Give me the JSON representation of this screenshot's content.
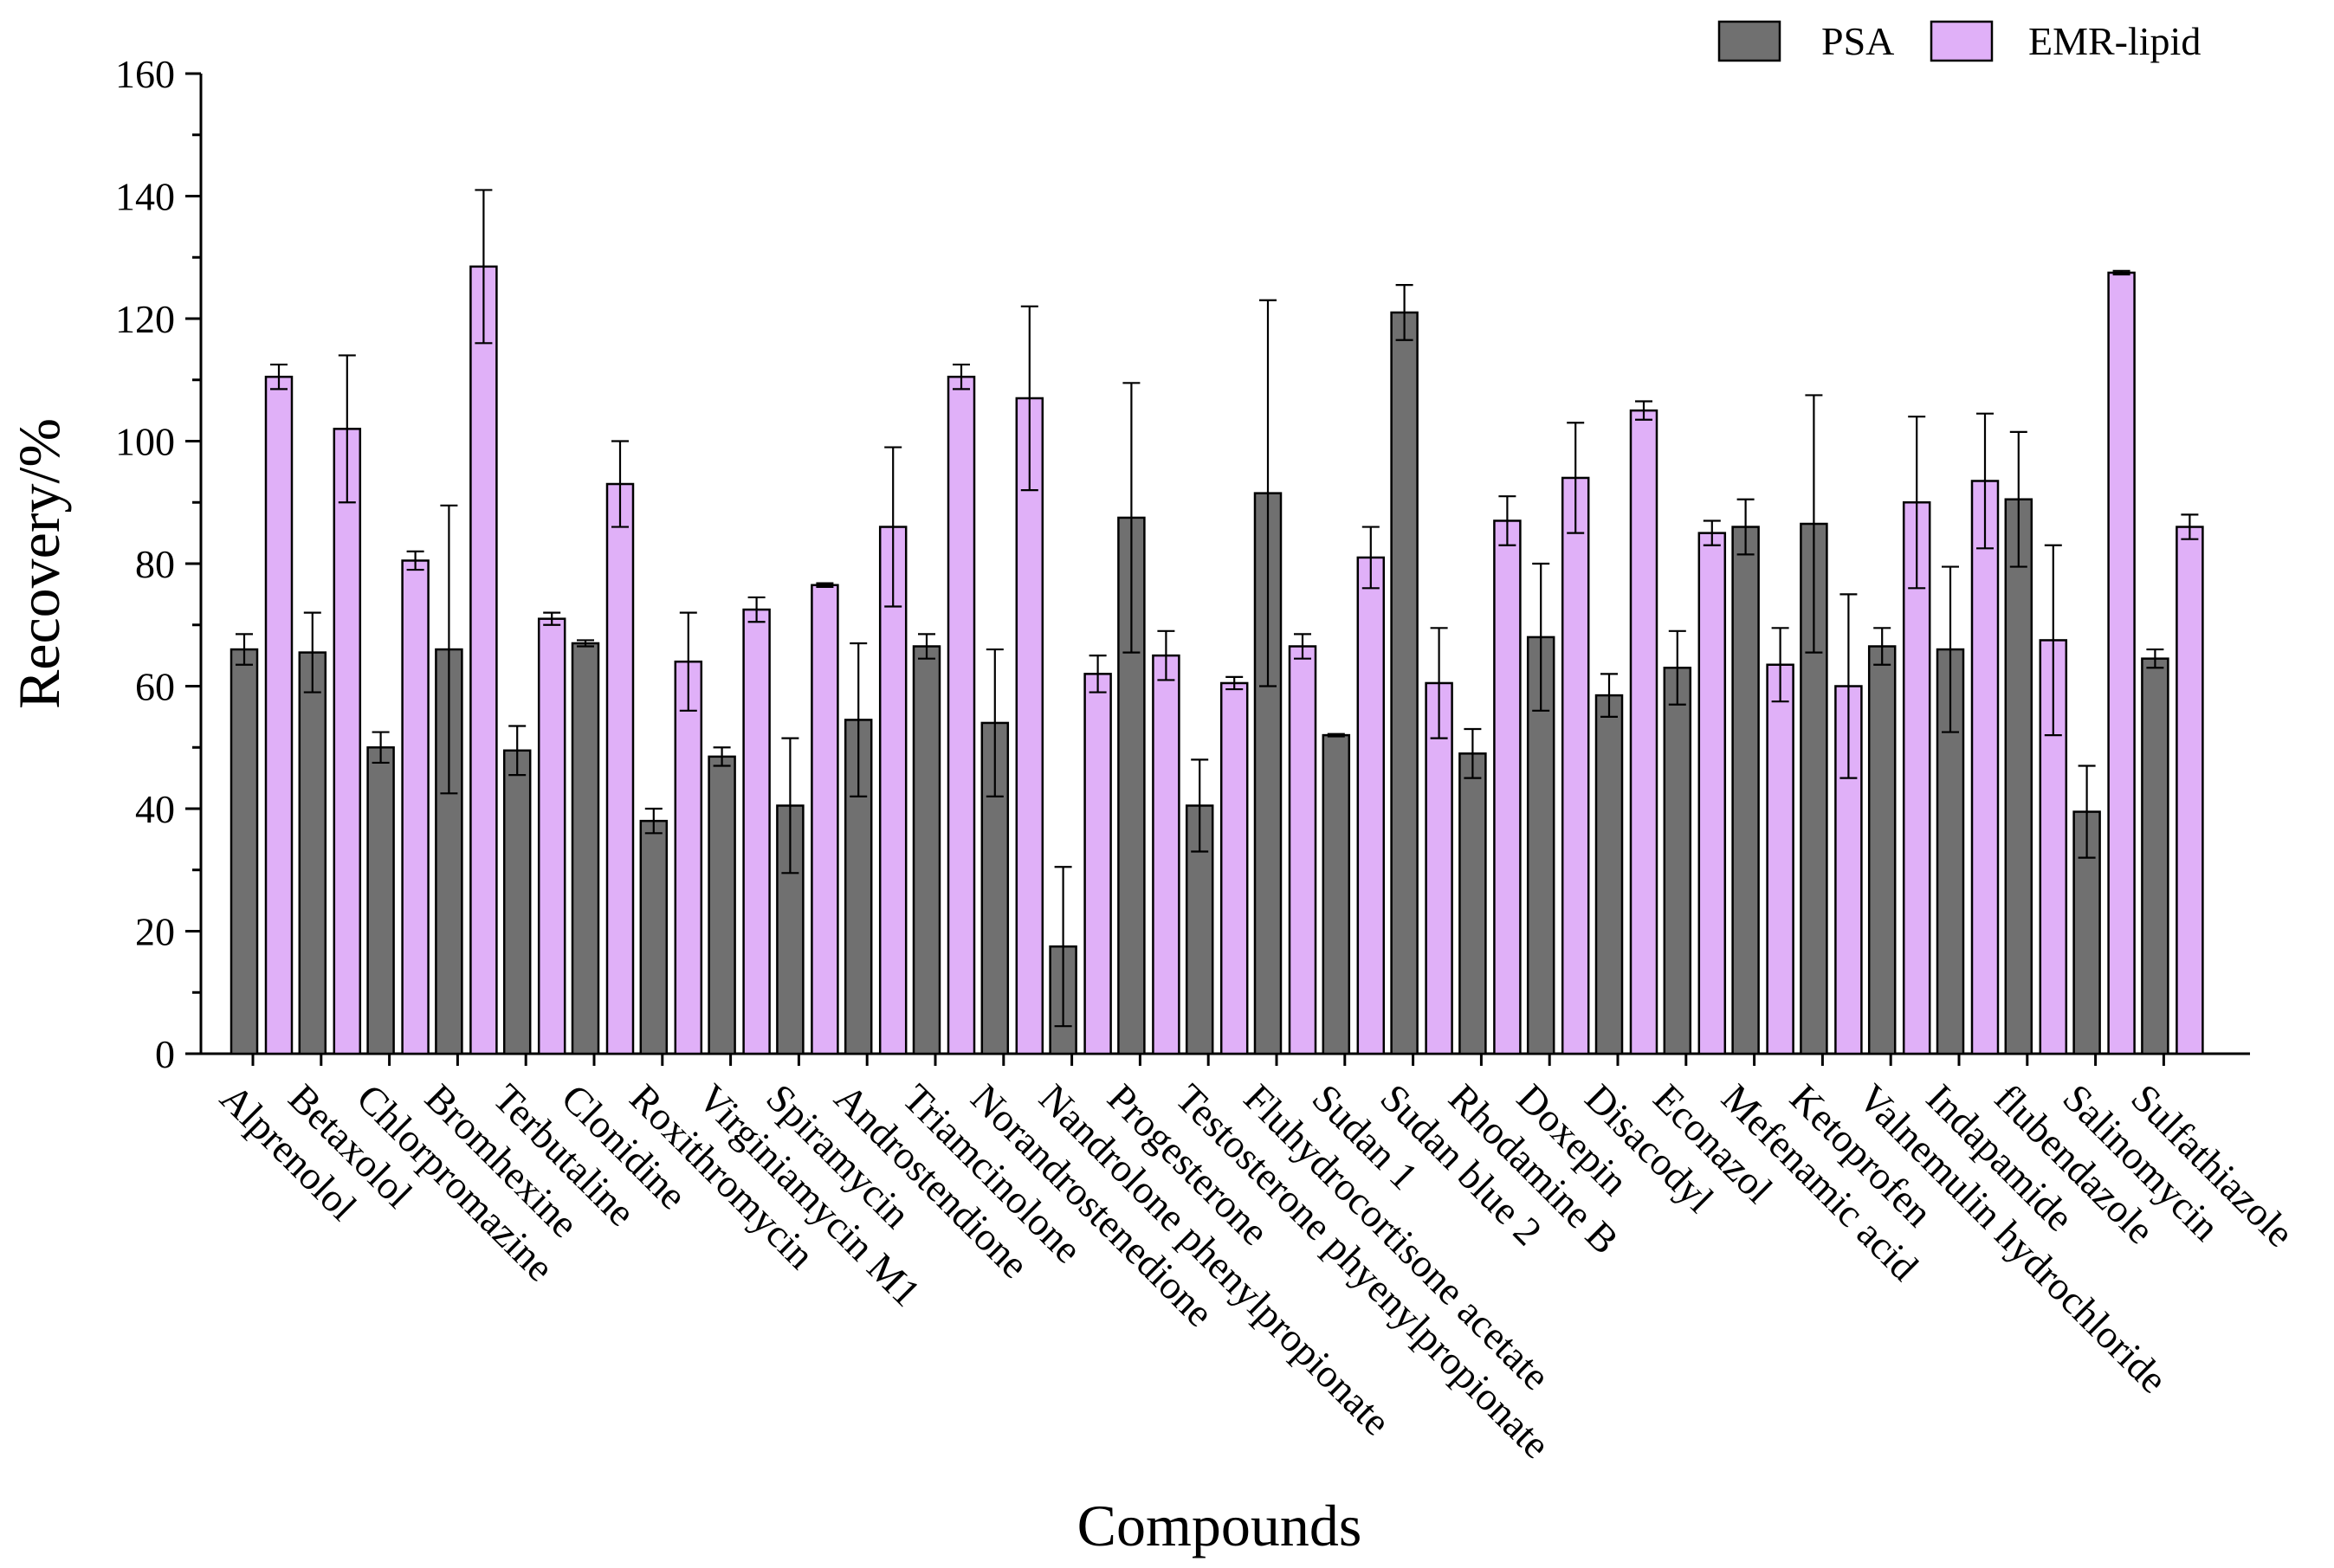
{
  "chart_data": {
    "type": "bar",
    "title": "",
    "xlabel": "Compounds",
    "ylabel": "Recovery/%",
    "ylim": [
      0,
      160
    ],
    "yticks": [
      0,
      20,
      40,
      60,
      80,
      100,
      120,
      140,
      160
    ],
    "legend_position": "top-right",
    "categories": [
      "Alprenolol",
      "Betaxolol",
      "Chlorpromazine",
      "Bromhexine",
      "Terbutaline",
      "Clonidine",
      "Roxithromycin",
      "Virginiamycin M1",
      "Spiramycin",
      "Androstendione",
      "Triamcinolone",
      "Norandrostenedione",
      "Nandrolone phenylpropionate",
      "Progesterone",
      "Testosterone phyenylpropionate",
      "Fluhydrocortisone acetate",
      "Sudan 1",
      "Sudan blue 2",
      "Rhodamine B",
      "Doxepin",
      "Disacodyl",
      "Econazol",
      "Mefenamic acid",
      "Ketoprofen",
      "Valnemulin hydrochloride",
      "Indapamide",
      "flubendazole",
      "Salinomycin",
      "Sulfathiazole"
    ],
    "series": [
      {
        "name": "PSA",
        "color": "#707070",
        "values": [
          66,
          65.5,
          50,
          66,
          49.5,
          67,
          38,
          48.5,
          40.5,
          54.5,
          66.5,
          54,
          17.5,
          87.5,
          40.5,
          91.5,
          52,
          121,
          49,
          68,
          58.5,
          63,
          86,
          86.5,
          66.5,
          66,
          90.5,
          39.5,
          64.5
        ],
        "errors": [
          2.5,
          6.5,
          2.5,
          23.5,
          4,
          0.5,
          2,
          1.5,
          11,
          12.5,
          2,
          12,
          13,
          22,
          7.5,
          31.5,
          0.2,
          4.5,
          4,
          12,
          3.5,
          6,
          4.5,
          21,
          3,
          13.5,
          11,
          7.5,
          1.5
        ]
      },
      {
        "name": "EMR-lipid",
        "color": "#e0b0f8",
        "values": [
          110.5,
          102,
          80.5,
          128.5,
          71,
          93,
          64,
          72.5,
          76.5,
          86,
          110.5,
          107,
          62,
          65,
          60.5,
          66.5,
          81,
          60.5,
          87,
          94,
          105,
          85,
          63.5,
          60,
          90,
          93.5,
          67.5,
          127.5,
          86
        ],
        "errors": [
          2,
          12,
          1.5,
          12.5,
          1,
          7,
          8,
          2,
          0.3,
          13,
          2,
          15,
          3,
          4,
          1,
          2,
          5,
          9,
          4,
          9,
          1.5,
          2,
          6,
          15,
          14,
          11,
          15.5,
          0.3,
          2
        ]
      }
    ]
  }
}
